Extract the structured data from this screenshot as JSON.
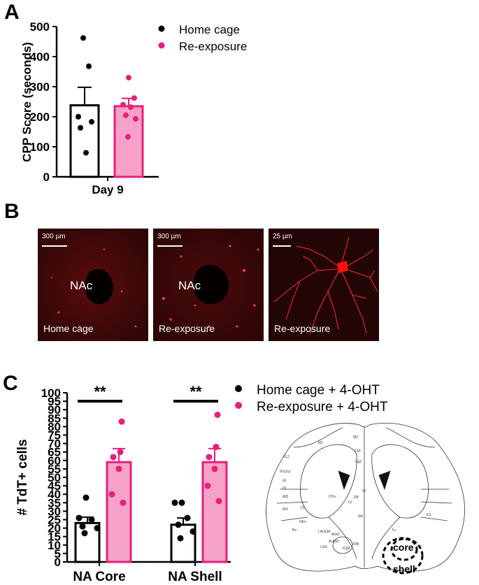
{
  "panels": {
    "a": "A",
    "b": "B",
    "c": "C"
  },
  "colors": {
    "home": "#000000",
    "reexp": "#e81e7d",
    "reexp_fill": "#f6a2c8"
  },
  "chart_data": [
    {
      "type": "bar",
      "ylabel": "CPP Score (seconds)",
      "categories": [
        "Day 9"
      ],
      "ylim": [
        0,
        500
      ],
      "yticks": [
        0,
        100,
        200,
        300,
        400,
        500
      ],
      "series": [
        {
          "name": "Home cage",
          "values": [
            238
          ],
          "error": [
            60
          ],
          "points": [
            462,
            368,
            200,
            183,
            163,
            80
          ]
        },
        {
          "name": "Re-exposure",
          "values": [
            235
          ],
          "error": [
            26
          ],
          "points": [
            330,
            262,
            240,
            232,
            205,
            193,
            133
          ]
        }
      ],
      "legend": "top-right"
    },
    {
      "type": "bar",
      "ylabel": "# TdT+ cells",
      "categories": [
        "NA Core",
        "NA Shell"
      ],
      "ylim": [
        0,
        100
      ],
      "yticks": [
        0,
        5,
        10,
        15,
        20,
        25,
        30,
        35,
        40,
        45,
        50,
        55,
        60,
        65,
        70,
        75,
        80,
        85,
        90,
        95,
        100
      ],
      "series": [
        {
          "name": "Home cage + 4-OHT",
          "values": [
            23,
            22
          ],
          "error": [
            3.5,
            4
          ],
          "points": [
            [
              38,
              26,
              25,
              21,
              20,
              17
            ],
            [
              35,
              35,
              26,
              22,
              18,
              14
            ]
          ]
        },
        {
          "name": "Re-exposure + 4-OHT",
          "values": [
            59,
            59
          ],
          "error": [
            8,
            8
          ],
          "points": [
            [
              83,
              65,
              62,
              55,
              40,
              35
            ],
            [
              87,
              68,
              62,
              55,
              45,
              36
            ]
          ]
        }
      ],
      "significance": [
        {
          "category": "NA Core",
          "label": "**"
        },
        {
          "category": "NA Shell",
          "label": "**"
        }
      ],
      "legend": "top-right"
    }
  ],
  "micrographs": [
    {
      "scale": "300 µm",
      "region": "NAc",
      "condition": "Home cage"
    },
    {
      "scale": "300 µm",
      "region": "NAc",
      "condition": "Re-exposure"
    },
    {
      "scale": "25 µm",
      "region": "",
      "condition": "Re-exposure"
    }
  ],
  "atlas": {
    "labels": [
      "M1",
      "M2",
      "Cg1",
      "S1J",
      "S1ULp",
      "GI",
      "DI",
      "AID",
      "AIV",
      "Cl",
      "CPu",
      "DEn",
      "Pir",
      "LAcbSh",
      "AcbC",
      "AcbSh",
      "LSS",
      "VDB",
      "Shi",
      "ICjM",
      "LV",
      "DP",
      "Cg2",
      "Tu",
      "ICj",
      "SI"
    ],
    "core": "core",
    "shell": "shell"
  }
}
